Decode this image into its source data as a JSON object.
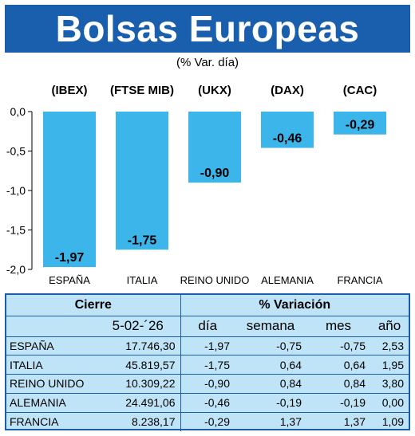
{
  "title": "Bolsas Europeas",
  "subtitle": "(% Var. día)",
  "colors": {
    "banner": "#1a5fad",
    "bar": "#3bb5ea",
    "table_bg": "#bfe3f7",
    "grid": "#1a5fad"
  },
  "chart_data": {
    "type": "bar",
    "categories": [
      "ESPAÑA",
      "ITALIA",
      "REINO UNIDO",
      "ALEMANIA",
      "FRANCIA"
    ],
    "index_labels": [
      "(IBEX)",
      "(FTSE MIB)",
      "(UKX)",
      "(DAX)",
      "(CAC)"
    ],
    "values": [
      -1.97,
      -1.75,
      -0.9,
      -0.46,
      -0.29
    ],
    "value_labels": [
      "-1,97",
      "-1,75",
      "-0,90",
      "-0,46",
      "-0,29"
    ],
    "ylim": [
      -2.0,
      0.0
    ],
    "yticks": [
      0.0,
      -0.5,
      -1.0,
      -1.5,
      -2.0
    ],
    "ytick_labels": [
      "0,0",
      "-0,5",
      "-1,0",
      "-1,5",
      "-2,0"
    ],
    "grid": false
  },
  "table": {
    "header_cierre": "Cierre",
    "header_variacion": "% Variación",
    "date": "5-02-´26",
    "col_dia": "día",
    "col_semana": "semana",
    "col_mes": "mes",
    "col_ano": "año",
    "rows": [
      {
        "name": "ESPAÑA",
        "cierre": "17.746,30",
        "dia": "-1,97",
        "semana": "-0,75",
        "mes": "-0,75",
        "ano": "2,53"
      },
      {
        "name": "ITALIA",
        "cierre": "45.819,57",
        "dia": "-1,75",
        "semana": "0,64",
        "mes": "0,64",
        "ano": "1,95"
      },
      {
        "name": "REINO UNIDO",
        "cierre": "10.309,22",
        "dia": "-0,90",
        "semana": "0,84",
        "mes": "0,84",
        "ano": "3,80"
      },
      {
        "name": "ALEMANIA",
        "cierre": "24.491,06",
        "dia": "-0,46",
        "semana": "-0,19",
        "mes": "-0,19",
        "ano": "0,00"
      },
      {
        "name": "FRANCIA",
        "cierre": "8.238,17",
        "dia": "-0,29",
        "semana": "1,37",
        "mes": "1,37",
        "ano": "1,09"
      }
    ]
  }
}
